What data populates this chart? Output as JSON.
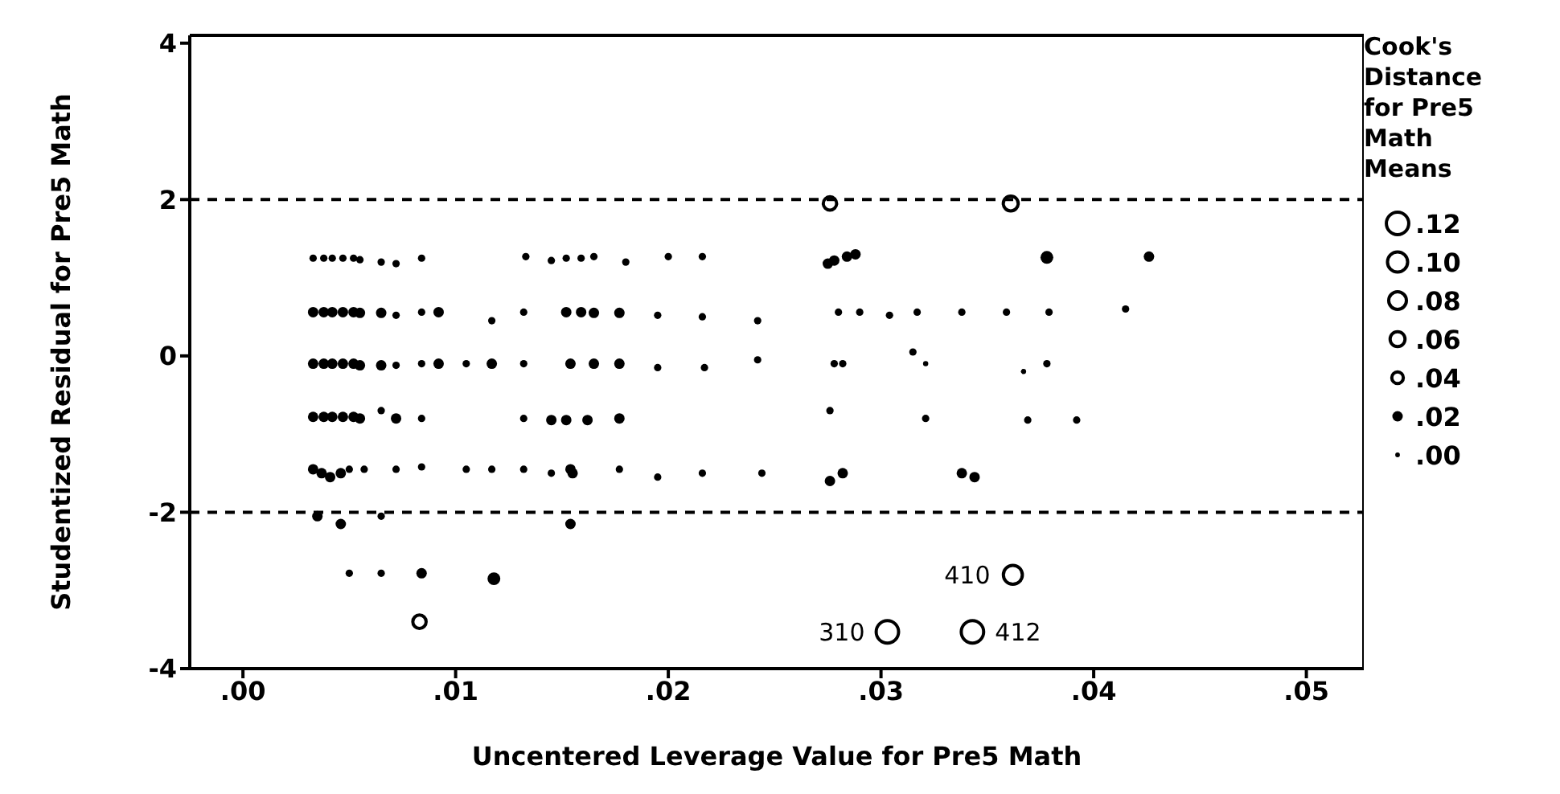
{
  "chart_data": {
    "type": "bubble",
    "xlabel": "Uncentered Leverage Value for Pre5 Math",
    "ylabel": "Studentized Residual for Pre5 Math",
    "legend_title": "Cook's Distance for Pre5 Math Means",
    "xlim": [
      -0.0025,
      0.0527
    ],
    "ylim": [
      -4,
      4.1
    ],
    "xticks": [
      {
        "value": 0,
        "label": ".00"
      },
      {
        "value": 0.01,
        "label": ".01"
      },
      {
        "value": 0.02,
        "label": ".02"
      },
      {
        "value": 0.03,
        "label": ".03"
      },
      {
        "value": 0.04,
        "label": ".04"
      },
      {
        "value": 0.05,
        "label": ".05"
      }
    ],
    "yticks": [
      -4,
      -2,
      0,
      2,
      4
    ],
    "size_legend": [
      {
        "value": 0.12,
        "label": ".12"
      },
      {
        "value": 0.1,
        "label": ".10"
      },
      {
        "value": 0.08,
        "label": ".08"
      },
      {
        "value": 0.06,
        "label": ".06"
      },
      {
        "value": 0.04,
        "label": ".04"
      },
      {
        "value": 0.02,
        "label": ".02"
      },
      {
        "value": 0.004,
        "label": ".00"
      }
    ],
    "ref_lines": [
      {
        "axis": "y",
        "value": 2,
        "label": null,
        "line_style": "dashed"
      },
      {
        "axis": "y",
        "value": -2,
        "label": null,
        "line_style": "dashed"
      }
    ],
    "color": "#000000",
    "x": [
      0.0033,
      0.0038,
      0.0042,
      0.0047,
      0.0052,
      0.0055,
      0.0065,
      0.0072,
      0.0084,
      0.0133,
      0.0145,
      0.0152,
      0.0159,
      0.0165,
      0.018,
      0.02,
      0.0216,
      0.0275,
      0.0278,
      0.0284,
      0.0288,
      0.0378,
      0.0426,
      0.0033,
      0.0038,
      0.0042,
      0.0047,
      0.0052,
      0.0055,
      0.0065,
      0.0072,
      0.0084,
      0.0092,
      0.0117,
      0.0132,
      0.0152,
      0.0159,
      0.0165,
      0.0177,
      0.0195,
      0.0216,
      0.0242,
      0.028,
      0.029,
      0.0304,
      0.0317,
      0.0338,
      0.0359,
      0.0379,
      0.0415,
      0.0033,
      0.0038,
      0.0042,
      0.0047,
      0.0052,
      0.0055,
      0.0065,
      0.0072,
      0.0084,
      0.0092,
      0.0105,
      0.0117,
      0.0132,
      0.0154,
      0.0165,
      0.0177,
      0.0195,
      0.0217,
      0.0242,
      0.0278,
      0.0282,
      0.0315,
      0.0321,
      0.0367,
      0.0378,
      0.0033,
      0.0038,
      0.0042,
      0.0047,
      0.0052,
      0.0055,
      0.0065,
      0.0072,
      0.0084,
      0.0132,
      0.0145,
      0.0152,
      0.0162,
      0.0177,
      0.0276,
      0.0321,
      0.0369,
      0.0392,
      0.0033,
      0.0037,
      0.0041,
      0.0046,
      0.005,
      0.0057,
      0.0072,
      0.0084,
      0.0105,
      0.0117,
      0.0132,
      0.0145,
      0.0154,
      0.0155,
      0.0177,
      0.0195,
      0.0216,
      0.0244,
      0.0276,
      0.0282,
      0.0338,
      0.0344,
      0.0035,
      0.0046,
      0.0065,
      0.0154,
      0.005,
      0.0065,
      0.0084,
      0.0118,
      0.0083,
      0.0276,
      0.0361,
      0.0362,
      0.0303,
      0.0343
    ],
    "values": [
      1.25,
      1.25,
      1.25,
      1.25,
      1.25,
      1.23,
      1.2,
      1.18,
      1.25,
      1.27,
      1.22,
      1.25,
      1.25,
      1.27,
      1.2,
      1.27,
      1.27,
      1.18,
      1.22,
      1.27,
      1.3,
      1.26,
      1.27,
      0.56,
      0.56,
      0.56,
      0.56,
      0.56,
      0.55,
      0.55,
      0.52,
      0.56,
      0.56,
      0.45,
      0.56,
      0.56,
      0.56,
      0.55,
      0.55,
      0.52,
      0.5,
      0.45,
      0.56,
      0.56,
      0.52,
      0.56,
      0.56,
      0.56,
      0.56,
      0.6,
      -0.1,
      -0.1,
      -0.1,
      -0.1,
      -0.1,
      -0.12,
      -0.12,
      -0.12,
      -0.1,
      -0.1,
      -0.1,
      -0.1,
      -0.1,
      -0.1,
      -0.1,
      -0.1,
      -0.15,
      -0.15,
      -0.05,
      -0.1,
      -0.1,
      0.05,
      -0.1,
      -0.2,
      -0.1,
      -0.78,
      -0.78,
      -0.78,
      -0.78,
      -0.78,
      -0.8,
      -0.7,
      -0.8,
      -0.8,
      -0.8,
      -0.82,
      -0.82,
      -0.82,
      -0.8,
      -0.7,
      -0.8,
      -0.82,
      -0.82,
      -1.45,
      -1.5,
      -1.55,
      -1.5,
      -1.45,
      -1.45,
      -1.45,
      -1.42,
      -1.45,
      -1.45,
      -1.45,
      -1.5,
      -1.45,
      -1.5,
      -1.45,
      -1.55,
      -1.5,
      -1.5,
      -1.6,
      -1.5,
      -1.5,
      -1.55,
      -2.05,
      -2.15,
      -2.05,
      -2.15,
      -2.78,
      -2.78,
      -2.78,
      -2.85,
      -3.4,
      1.95,
      1.95,
      -2.8,
      -3.53,
      -3.53
    ],
    "sizes": [
      0.01,
      0.01,
      0.01,
      0.01,
      0.01,
      0.01,
      0.01,
      0.01,
      0.01,
      0.01,
      0.01,
      0.01,
      0.01,
      0.01,
      0.01,
      0.01,
      0.01,
      0.02,
      0.02,
      0.02,
      0.02,
      0.03,
      0.02,
      0.02,
      0.02,
      0.02,
      0.02,
      0.02,
      0.02,
      0.02,
      0.01,
      0.01,
      0.02,
      0.01,
      0.01,
      0.02,
      0.02,
      0.02,
      0.02,
      0.01,
      0.01,
      0.01,
      0.01,
      0.01,
      0.01,
      0.01,
      0.01,
      0.01,
      0.01,
      0.01,
      0.02,
      0.02,
      0.02,
      0.02,
      0.02,
      0.02,
      0.02,
      0.01,
      0.01,
      0.02,
      0.01,
      0.02,
      0.01,
      0.02,
      0.02,
      0.02,
      0.01,
      0.01,
      0.01,
      0.01,
      0.01,
      0.01,
      0.005,
      0.005,
      0.01,
      0.02,
      0.02,
      0.02,
      0.02,
      0.02,
      0.02,
      0.01,
      0.02,
      0.01,
      0.01,
      0.02,
      0.02,
      0.02,
      0.02,
      0.01,
      0.01,
      0.01,
      0.01,
      0.02,
      0.02,
      0.02,
      0.02,
      0.01,
      0.01,
      0.01,
      0.01,
      0.01,
      0.01,
      0.01,
      0.01,
      0.02,
      0.02,
      0.01,
      0.01,
      0.01,
      0.01,
      0.02,
      0.02,
      0.02,
      0.02,
      0.02,
      0.02,
      0.01,
      0.02,
      0.01,
      0.01,
      0.02,
      0.03,
      0.05,
      0.05,
      0.06,
      0.09,
      0.12,
      0.12
    ],
    "annotations": [
      {
        "text": "410",
        "x": 0.0362,
        "y": -2.8
      },
      {
        "text": "310",
        "x": 0.0303,
        "y": -3.53
      },
      {
        "text": "412",
        "x": 0.0343,
        "y": -3.53
      }
    ]
  }
}
